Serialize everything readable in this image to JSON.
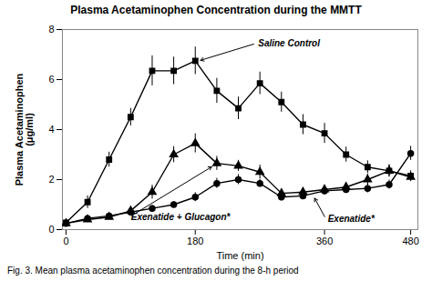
{
  "chart_data": {
    "type": "line",
    "title": "Plasma Acetaminophen Concentration during the MMTT",
    "xlabel": "Time (min)",
    "ylabel": "Plasma Acetaminophen\n(μg/ml)",
    "caption": "Fig. 3.  Mean plasma acetaminophen concentration during the 8-h period",
    "xlim": [
      -5,
      490
    ],
    "ylim": [
      0,
      8
    ],
    "xticks": [
      0,
      180,
      360,
      480
    ],
    "yticks": [
      0,
      2,
      4,
      6,
      8
    ],
    "series": [
      {
        "name": "Saline Control",
        "color": "#000000",
        "marker": "square",
        "x": [
          0,
          30,
          60,
          90,
          120,
          150,
          180,
          210,
          240,
          270,
          300,
          330,
          360,
          390,
          420,
          450,
          480
        ],
        "values": [
          0.28,
          1.1,
          2.8,
          4.5,
          6.35,
          6.35,
          6.75,
          5.55,
          4.85,
          5.85,
          5.1,
          4.2,
          3.85,
          3.0,
          2.5,
          2.35,
          2.15
        ],
        "errors": [
          0.12,
          0.25,
          0.3,
          0.35,
          0.6,
          0.55,
          0.55,
          0.5,
          0.45,
          0.45,
          0.4,
          0.4,
          0.4,
          0.3,
          0.25,
          0.25,
          0.2
        ],
        "annotation": {
          "x": 185,
          "y": 6.75,
          "text_x": 265,
          "text_y": 7.45
        }
      },
      {
        "name": "Exenatide + Glucagon*",
        "color": "#000000",
        "marker": "triangle",
        "x": [
          0,
          30,
          60,
          90,
          120,
          150,
          180,
          210,
          240,
          270,
          300,
          330,
          360,
          390,
          420,
          450,
          480
        ],
        "values": [
          0.25,
          0.4,
          0.5,
          0.75,
          1.5,
          3.0,
          3.45,
          2.65,
          2.55,
          2.3,
          1.45,
          1.5,
          1.6,
          1.7,
          2.0,
          2.35,
          2.1
        ],
        "errors": [
          0.05,
          0.08,
          0.08,
          0.12,
          0.28,
          0.32,
          0.38,
          0.28,
          0.22,
          0.28,
          0.18,
          0.18,
          0.18,
          0.18,
          0.22,
          0.22,
          0.18
        ],
        "annotation": {
          "x": 205,
          "y": 2.55,
          "text_x": 88,
          "text_y": 0.5
        }
      },
      {
        "name": "Exenatide*",
        "color": "#000000",
        "marker": "circle",
        "x": [
          0,
          30,
          60,
          90,
          120,
          150,
          180,
          210,
          240,
          270,
          300,
          330,
          360,
          390,
          420,
          450,
          480
        ],
        "values": [
          0.25,
          0.45,
          0.55,
          0.7,
          0.85,
          1.0,
          1.3,
          1.85,
          2.0,
          1.85,
          1.3,
          1.35,
          1.55,
          1.6,
          1.65,
          1.8,
          3.05
        ],
        "errors": [
          0.05,
          0.08,
          0.08,
          0.1,
          0.12,
          0.12,
          0.18,
          0.2,
          0.2,
          0.15,
          0.15,
          0.15,
          0.15,
          0.15,
          0.18,
          0.18,
          0.28
        ],
        "annotation": {
          "x": 345,
          "y": 1.32,
          "text_x": 362,
          "text_y": 0.42
        }
      }
    ]
  }
}
